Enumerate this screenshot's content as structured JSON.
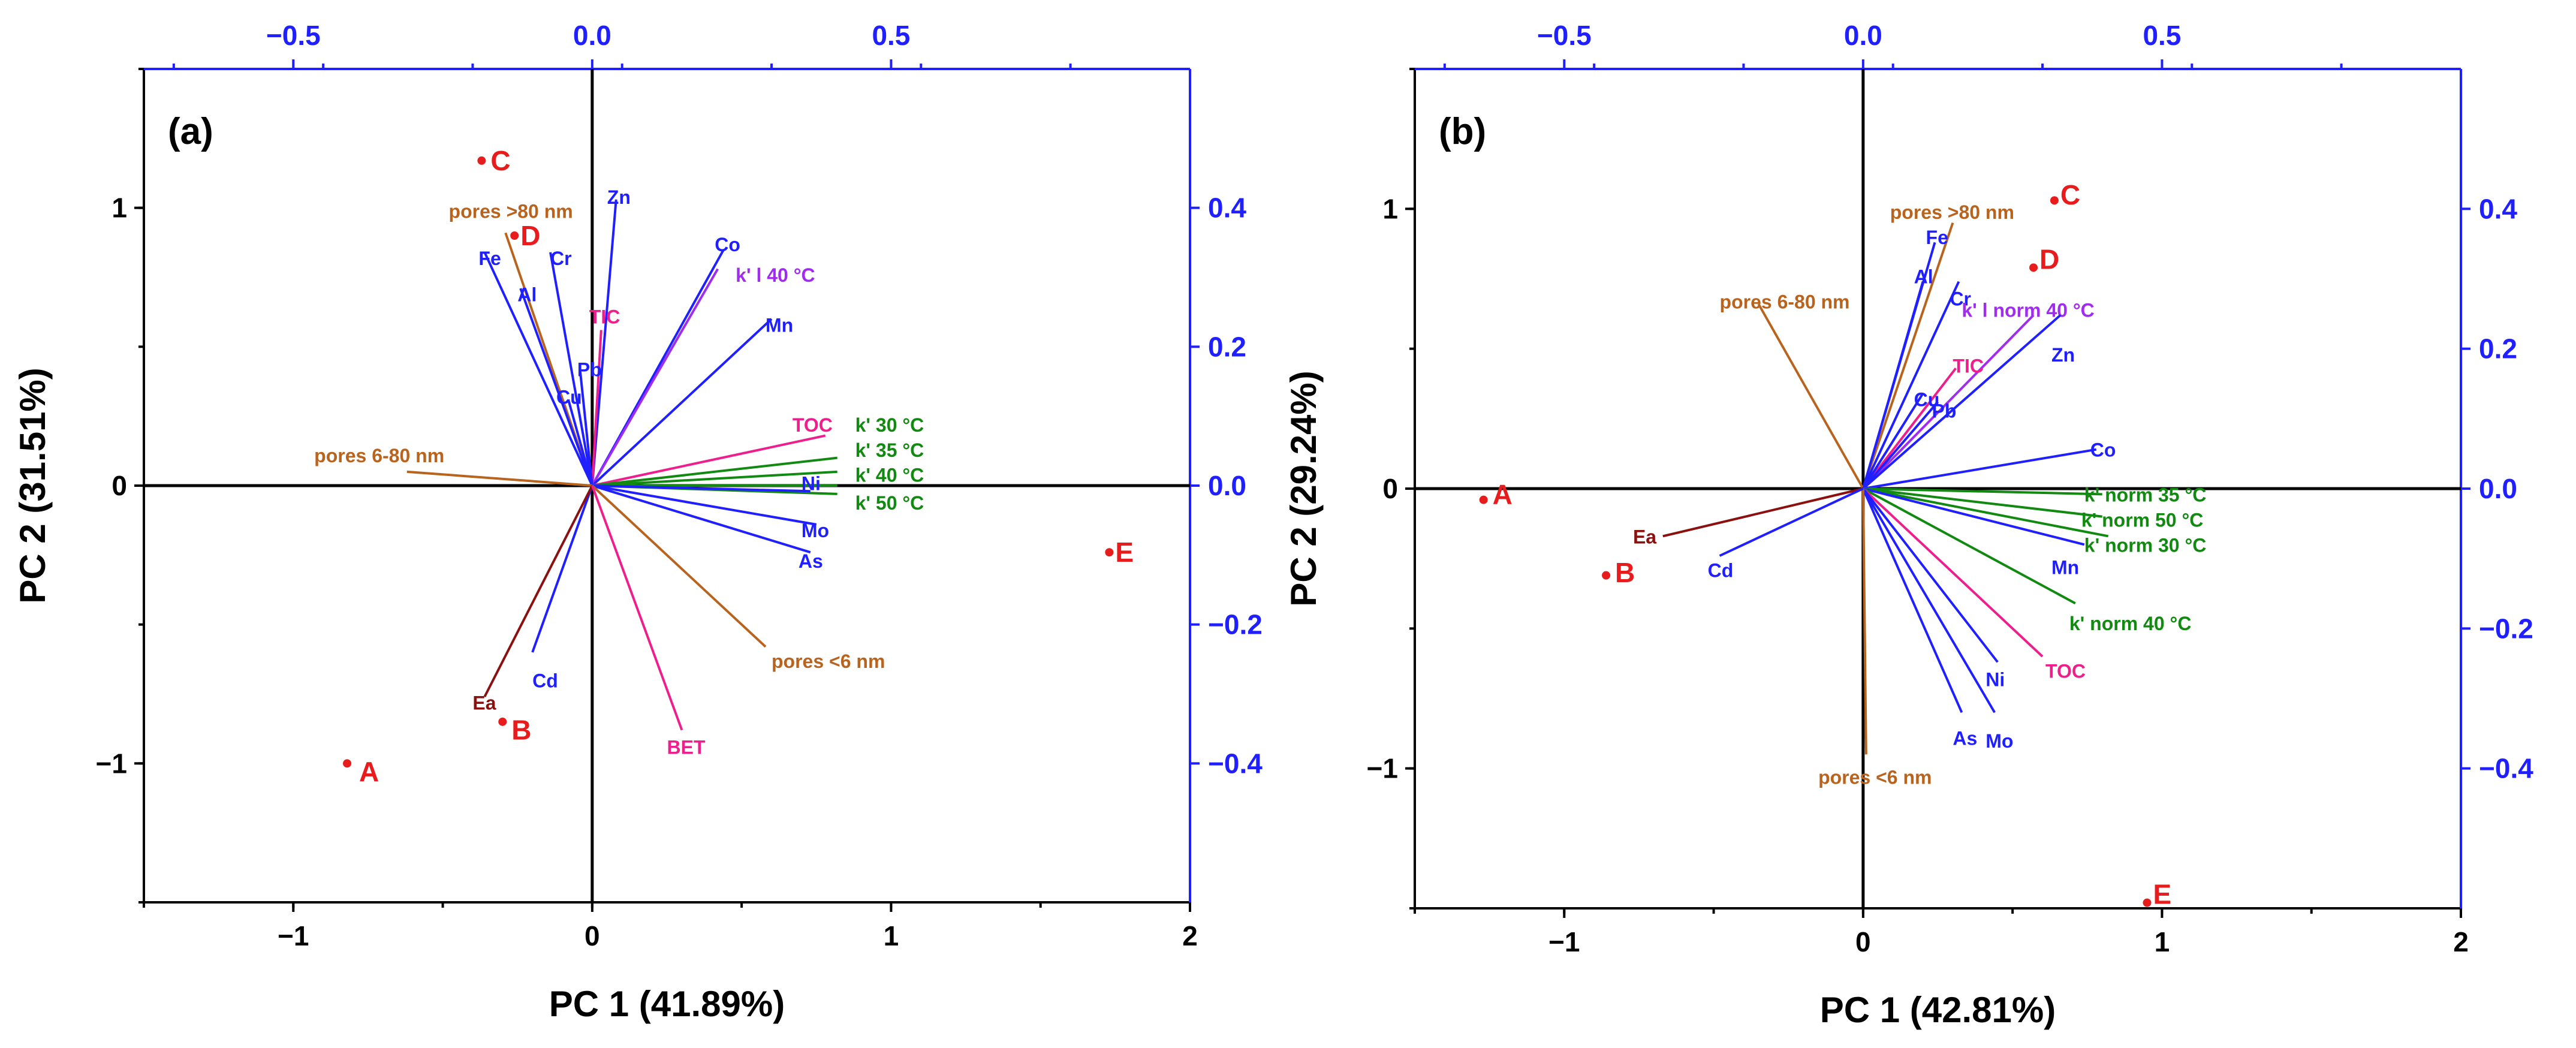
{
  "colors": {
    "brown": "#b8641e",
    "darkred": "#8b1010",
    "blue": "#1f1fff",
    "pink": "#ee1e8c",
    "green": "#128a12",
    "violet": "#a02cf0",
    "red": "#e81c1c",
    "black": "#000000"
  },
  "chart_data": [
    {
      "type": "scatter",
      "subtype": "biplot",
      "panel_label": "(a)",
      "xlabel": "PC 1 (41.89%)",
      "ylabel": "PC 2 (31.51%)",
      "xlim": [
        -1.5,
        2
      ],
      "ylim": [
        -1.5,
        1.5
      ],
      "x_ticks": [
        {
          "v": -1,
          "label": "−1"
        },
        {
          "v": 0,
          "label": "0"
        },
        {
          "v": 1,
          "label": "1"
        },
        {
          "v": 2,
          "label": "2"
        }
      ],
      "y_ticks": [
        {
          "v": -1,
          "label": "−1"
        },
        {
          "v": 0,
          "label": "0"
        },
        {
          "v": 1,
          "label": "1"
        }
      ],
      "top_ticks": [
        {
          "v": -0.5,
          "label": "−0.5"
        },
        {
          "v": 0,
          "label": "0.0"
        },
        {
          "v": 0.5,
          "label": "0.5"
        }
      ],
      "right_ticks": [
        {
          "v": -0.4,
          "label": "−0.4"
        },
        {
          "v": -0.2,
          "label": "−0.2"
        },
        {
          "v": 0,
          "label": "0.0"
        },
        {
          "v": 0.2,
          "label": "0.2"
        },
        {
          "v": 0.4,
          "label": "0.4"
        }
      ],
      "points": [
        {
          "label": "A",
          "x": -0.82,
          "y": -1.0,
          "lx": -0.78,
          "ly": -1.03
        },
        {
          "label": "B",
          "x": -0.3,
          "y": -0.85,
          "lx": -0.27,
          "ly": -0.88
        },
        {
          "label": "C",
          "x": -0.37,
          "y": 1.17,
          "lx": -0.34,
          "ly": 1.17
        },
        {
          "label": "D",
          "x": -0.26,
          "y": 0.9,
          "lx": -0.24,
          "ly": 0.9
        },
        {
          "label": "E",
          "x": 1.73,
          "y": -0.24,
          "lx": 1.75,
          "ly": -0.24
        }
      ],
      "loadings": [
        {
          "label": "Zn",
          "x": 0.08,
          "y": 1.03,
          "lx": 0.05,
          "ly": 1.04,
          "color": "blue"
        },
        {
          "label": "Co",
          "x": 0.44,
          "y": 0.85,
          "lx": 0.41,
          "ly": 0.87,
          "color": "blue"
        },
        {
          "label": "k' l 40 °C",
          "x": 0.42,
          "y": 0.78,
          "lx": 0.48,
          "ly": 0.76,
          "color": "violet"
        },
        {
          "label": "Mn",
          "x": 0.6,
          "y": 0.6,
          "lx": 0.58,
          "ly": 0.58,
          "color": "blue"
        },
        {
          "label": "pores >80 nm",
          "x": -0.29,
          "y": 0.91,
          "lx": -0.48,
          "ly": 0.99,
          "color": "brown"
        },
        {
          "label": "Fe",
          "x": -0.36,
          "y": 0.84,
          "lx": -0.38,
          "ly": 0.82,
          "color": "blue"
        },
        {
          "label": "Cr",
          "x": -0.14,
          "y": 0.84,
          "lx": -0.14,
          "ly": 0.82,
          "color": "blue"
        },
        {
          "label": "Al",
          "x": -0.24,
          "y": 0.71,
          "lx": -0.25,
          "ly": 0.69,
          "color": "blue"
        },
        {
          "label": "TIC",
          "x": 0.03,
          "y": 0.56,
          "lx": -0.01,
          "ly": 0.61,
          "color": "pink"
        },
        {
          "label": "Pb",
          "x": -0.04,
          "y": 0.41,
          "lx": -0.05,
          "ly": 0.42,
          "color": "blue"
        },
        {
          "label": "Cu",
          "x": -0.08,
          "y": 0.31,
          "lx": -0.12,
          "ly": 0.32,
          "color": "blue"
        },
        {
          "label": "TOC",
          "x": 0.78,
          "y": 0.18,
          "lx": 0.67,
          "ly": 0.22,
          "color": "pink"
        },
        {
          "label": "k' 30 °C",
          "x": 0.82,
          "y": 0.1,
          "lx": 0.88,
          "ly": 0.22,
          "color": "green"
        },
        {
          "label": "k' 35 °C",
          "x": 0.82,
          "y": 0.05,
          "lx": 0.88,
          "ly": 0.13,
          "color": "green"
        },
        {
          "label": "k' 40 °C",
          "x": 0.82,
          "y": 0.0,
          "lx": 0.88,
          "ly": 0.04,
          "color": "green"
        },
        {
          "label": "k' 50 °C",
          "x": 0.82,
          "y": -0.03,
          "lx": 0.88,
          "ly": -0.06,
          "color": "green"
        },
        {
          "label": "Ni",
          "x": 0.73,
          "y": -0.02,
          "lx": 0.7,
          "ly": 0.01,
          "color": "blue"
        },
        {
          "label": "Mo",
          "x": 0.75,
          "y": -0.14,
          "lx": 0.7,
          "ly": -0.16,
          "color": "blue"
        },
        {
          "label": "As",
          "x": 0.73,
          "y": -0.24,
          "lx": 0.69,
          "ly": -0.27,
          "color": "blue"
        },
        {
          "label": "pores 6-80 nm",
          "x": -0.62,
          "y": 0.05,
          "lx": -0.93,
          "ly": 0.11,
          "color": "brown"
        },
        {
          "label": "pores <6 nm",
          "x": 0.58,
          "y": -0.58,
          "lx": 0.6,
          "ly": -0.63,
          "color": "brown"
        },
        {
          "label": "Cd",
          "x": -0.2,
          "y": -0.6,
          "lx": -0.2,
          "ly": -0.7,
          "color": "blue"
        },
        {
          "label": "Ea",
          "x": -0.36,
          "y": -0.76,
          "lx": -0.4,
          "ly": -0.78,
          "color": "darkred"
        },
        {
          "label": "BET",
          "x": 0.3,
          "y": -0.88,
          "lx": 0.25,
          "ly": -0.94,
          "color": "pink"
        }
      ]
    },
    {
      "type": "scatter",
      "subtype": "biplot",
      "panel_label": "(b)",
      "xlabel": "PC 1 (42.81%)",
      "ylabel": "PC 2 (29.24%)",
      "xlim": [
        -1.5,
        2
      ],
      "ylim": [
        -1.5,
        1.5
      ],
      "x_ticks": [
        {
          "v": -1,
          "label": "−1"
        },
        {
          "v": 0,
          "label": "0"
        },
        {
          "v": 1,
          "label": "1"
        },
        {
          "v": 2,
          "label": "2"
        }
      ],
      "y_ticks": [
        {
          "v": -1,
          "label": "−1"
        },
        {
          "v": 0,
          "label": "0"
        },
        {
          "v": 1,
          "label": "1"
        }
      ],
      "top_ticks": [
        {
          "v": -0.5,
          "label": "−0.5"
        },
        {
          "v": 0,
          "label": "0.0"
        },
        {
          "v": 0.5,
          "label": "0.5"
        }
      ],
      "right_ticks": [
        {
          "v": -0.4,
          "label": "−0.4"
        },
        {
          "v": -0.2,
          "label": "−0.2"
        },
        {
          "v": 0,
          "label": "0.0"
        },
        {
          "v": 0.2,
          "label": "0.2"
        },
        {
          "v": 0.4,
          "label": "0.4"
        }
      ],
      "points": [
        {
          "label": "A",
          "x": -1.27,
          "y": -0.04,
          "lx": -1.24,
          "ly": -0.02
        },
        {
          "label": "B",
          "x": -0.86,
          "y": -0.31,
          "lx": -0.83,
          "ly": -0.3
        },
        {
          "label": "C",
          "x": 0.64,
          "y": 1.03,
          "lx": 0.66,
          "ly": 1.05
        },
        {
          "label": "D",
          "x": 0.57,
          "y": 0.79,
          "lx": 0.59,
          "ly": 0.82
        },
        {
          "label": "E",
          "x": 0.95,
          "y": -1.48,
          "lx": 0.97,
          "ly": -1.45
        }
      ],
      "loadings": [
        {
          "label": "pores >80 nm",
          "x": 0.3,
          "y": 0.95,
          "lx": 0.09,
          "ly": 0.99,
          "color": "brown"
        },
        {
          "label": "Fe",
          "x": 0.24,
          "y": 0.88,
          "lx": 0.21,
          "ly": 0.9,
          "color": "blue"
        },
        {
          "label": "Al",
          "x": 0.2,
          "y": 0.74,
          "lx": 0.17,
          "ly": 0.76,
          "color": "blue"
        },
        {
          "label": "Cr",
          "x": 0.32,
          "y": 0.74,
          "lx": 0.29,
          "ly": 0.68,
          "color": "blue"
        },
        {
          "label": "k' l norm 40 °C",
          "x": 0.57,
          "y": 0.62,
          "lx": 0.33,
          "ly": 0.64,
          "color": "violet"
        },
        {
          "label": "Zn",
          "x": 0.66,
          "y": 0.62,
          "lx": 0.63,
          "ly": 0.48,
          "color": "blue"
        },
        {
          "label": "pores 6-80 nm",
          "x": -0.35,
          "y": 0.66,
          "lx": -0.48,
          "ly": 0.67,
          "color": "brown"
        },
        {
          "label": "TIC",
          "x": 0.31,
          "y": 0.43,
          "lx": 0.3,
          "ly": 0.44,
          "color": "pink"
        },
        {
          "label": "Cu",
          "x": 0.2,
          "y": 0.34,
          "lx": 0.17,
          "ly": 0.32,
          "color": "blue"
        },
        {
          "label": "Pb",
          "x": 0.25,
          "y": 0.31,
          "lx": 0.23,
          "ly": 0.28,
          "color": "blue"
        },
        {
          "label": "Co",
          "x": 0.78,
          "y": 0.14,
          "lx": 0.76,
          "ly": 0.14,
          "color": "blue"
        },
        {
          "label": "k' norm 35 °C",
          "x": 0.8,
          "y": -0.02,
          "lx": 0.74,
          "ly": -0.02,
          "color": "green"
        },
        {
          "label": "k' norm 50 °C",
          "x": 0.8,
          "y": -0.1,
          "lx": 0.73,
          "ly": -0.11,
          "color": "green"
        },
        {
          "label": "k' norm 30 °C",
          "x": 0.82,
          "y": -0.17,
          "lx": 0.74,
          "ly": -0.2,
          "color": "green"
        },
        {
          "label": "Mn",
          "x": 0.74,
          "y": -0.2,
          "lx": 0.63,
          "ly": -0.28,
          "color": "blue"
        },
        {
          "label": "k' norm 40 °C",
          "x": 0.71,
          "y": -0.41,
          "lx": 0.69,
          "ly": -0.48,
          "color": "green"
        },
        {
          "label": "TOC",
          "x": 0.6,
          "y": -0.6,
          "lx": 0.61,
          "ly": -0.65,
          "color": "pink"
        },
        {
          "label": "Ni",
          "x": 0.45,
          "y": -0.62,
          "lx": 0.41,
          "ly": -0.68,
          "color": "blue"
        },
        {
          "label": "Mo",
          "x": 0.44,
          "y": -0.8,
          "lx": 0.41,
          "ly": -0.9,
          "color": "blue"
        },
        {
          "label": "As",
          "x": 0.33,
          "y": -0.8,
          "lx": 0.3,
          "ly": -0.89,
          "color": "blue"
        },
        {
          "label": "pores <6 nm",
          "x": 0.01,
          "y": -0.95,
          "lx": -0.15,
          "ly": -1.03,
          "color": "brown"
        },
        {
          "label": "Ea",
          "x": -0.67,
          "y": -0.17,
          "lx": -0.77,
          "ly": -0.17,
          "color": "darkred"
        },
        {
          "label": "Cd",
          "x": -0.48,
          "y": -0.24,
          "lx": -0.52,
          "ly": -0.29,
          "color": "blue"
        }
      ]
    }
  ]
}
